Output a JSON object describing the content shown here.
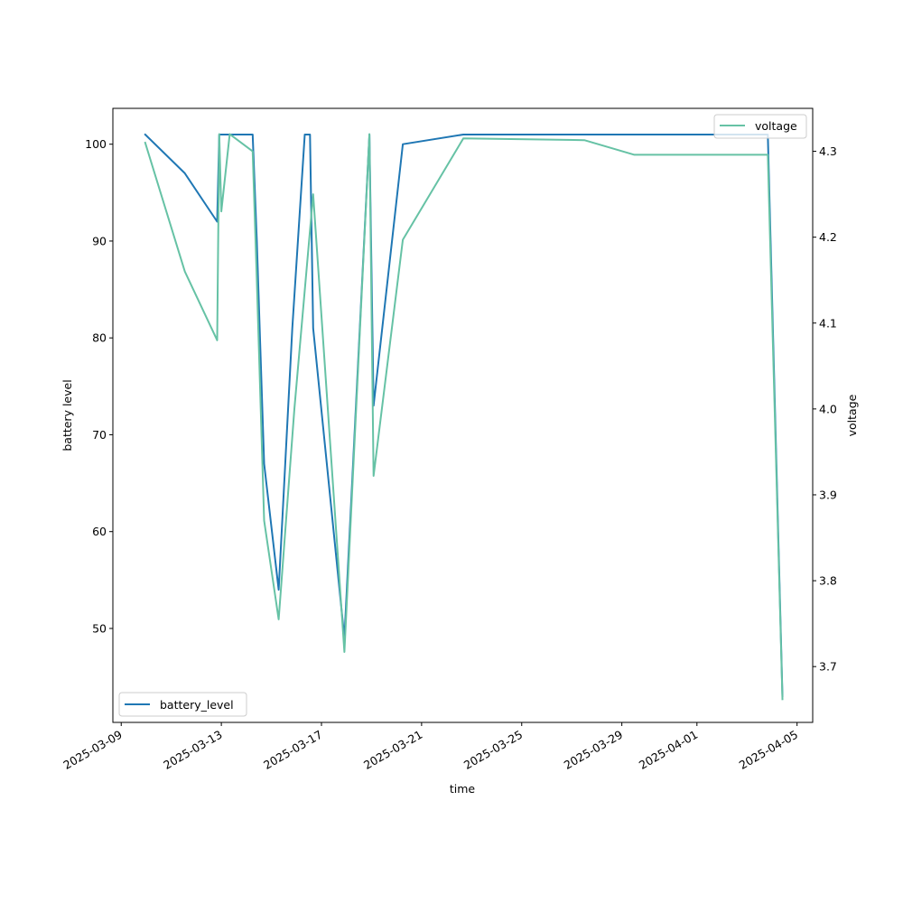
{
  "chart_data": {
    "type": "line",
    "title": "",
    "xlabel": "time",
    "ylabel": "battery level",
    "y2label": "voltage",
    "xlim": [
      "2025-03-08T16:00",
      "2025-04-05T15:00"
    ],
    "ylim": [
      40.3,
      103.7
    ],
    "y2lim": [
      3.635,
      4.35
    ],
    "x_ticks": [
      "2025-03-09",
      "2025-03-13",
      "2025-03-17",
      "2025-03-21",
      "2025-03-25",
      "2025-03-29",
      "2025-04-01",
      "2025-04-05"
    ],
    "y_ticks": [
      50,
      60,
      70,
      80,
      90,
      100
    ],
    "y2_ticks": [
      "3.7",
      "3.8",
      "3.9",
      "4.0",
      "4.1",
      "4.2",
      "4.3"
    ],
    "grid": false,
    "series": [
      {
        "name": "battery_level",
        "axis": "left",
        "color": "#1f77b4",
        "legend_position": "lower-left",
        "x": [
          "2025-03-09T23:00",
          "2025-03-11T13:00",
          "2025-03-12T20:00",
          "2025-03-12T22:00",
          "2025-03-13T00:00",
          "2025-03-14T06:00",
          "2025-03-14T10:00",
          "2025-03-14T17:00",
          "2025-03-15T07:00",
          "2025-03-15T20:00",
          "2025-03-16T08:00",
          "2025-03-16T13:00",
          "2025-03-16T16:00",
          "2025-03-17T22:00",
          "2025-03-18T22:00",
          "2025-03-19T02:00",
          "2025-03-20T06:00",
          "2025-03-22T16:00",
          "2025-04-03T20:00",
          "2025-04-04T10:00"
        ],
        "values": [
          101,
          97,
          92,
          101,
          101,
          101,
          90,
          67,
          54,
          81,
          101,
          101,
          81,
          49,
          101,
          73,
          100,
          101,
          101,
          43
        ]
      },
      {
        "name": "voltage",
        "axis": "right",
        "color": "#66c2a5",
        "legend_position": "upper-right",
        "x": [
          "2025-03-09T23:00",
          "2025-03-11T13:00",
          "2025-03-12T20:00",
          "2025-03-12T22:00",
          "2025-03-13T00:00",
          "2025-03-13T08:00",
          "2025-03-14T06:00",
          "2025-03-14T10:00",
          "2025-03-14T17:00",
          "2025-03-15T07:00",
          "2025-03-15T22:00",
          "2025-03-16T16:00",
          "2025-03-17T22:00",
          "2025-03-18T22:00",
          "2025-03-19T02:00",
          "2025-03-20T06:00",
          "2025-03-22T16:00",
          "2025-03-27T12:00",
          "2025-03-29T12:00",
          "2025-04-03T20:00",
          "2025-04-04T10:00"
        ],
        "values": [
          4.31,
          4.16,
          4.08,
          4.32,
          4.23,
          4.32,
          4.3,
          4.15,
          3.87,
          3.755,
          4.0,
          4.25,
          3.717,
          4.32,
          3.922,
          4.197,
          4.315,
          4.313,
          4.296,
          4.296,
          3.662
        ]
      }
    ]
  }
}
